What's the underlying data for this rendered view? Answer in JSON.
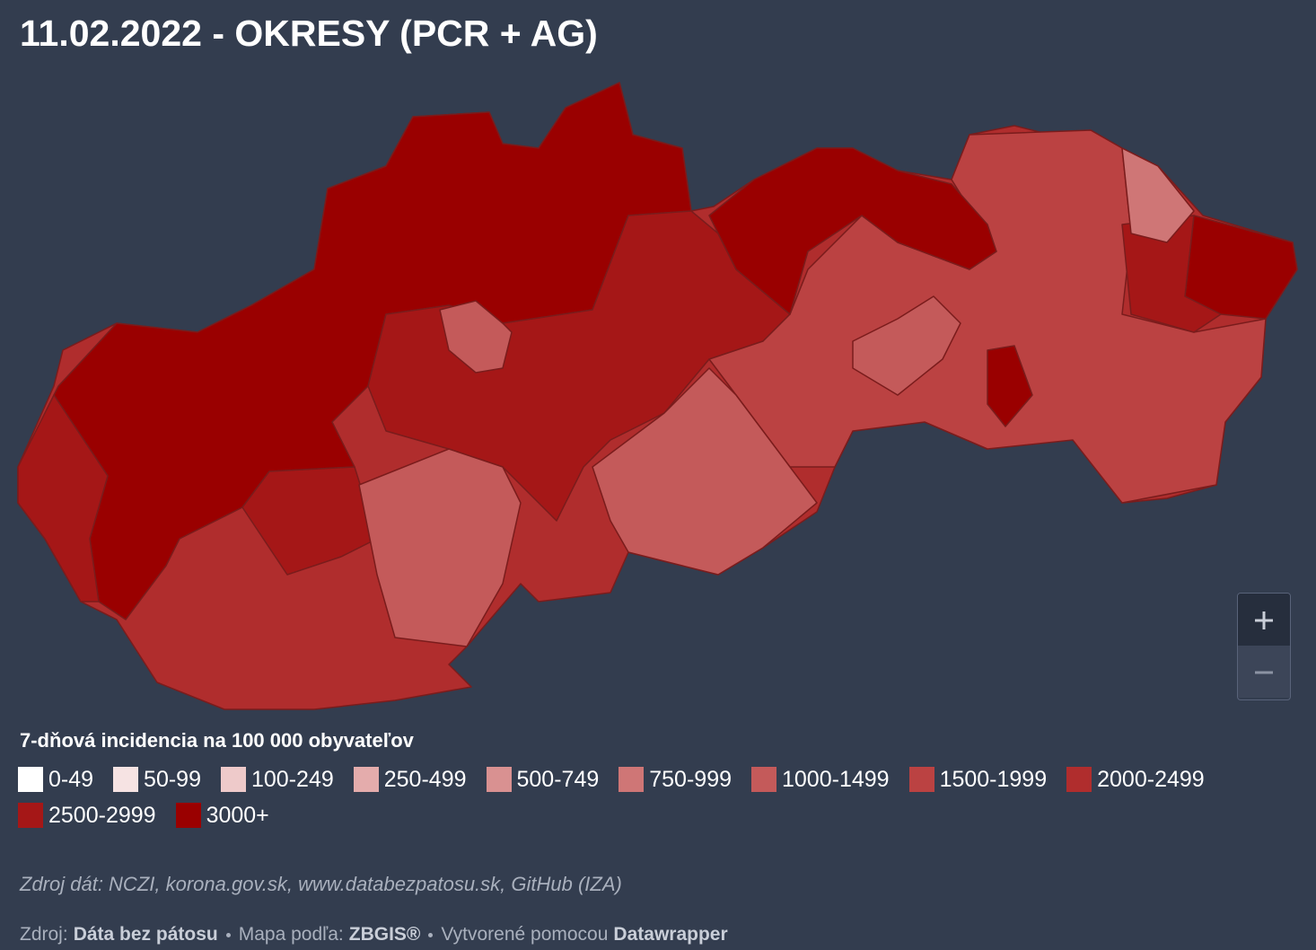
{
  "header": {
    "title": "11.02.2022 - OKRESY (PCR + AG)"
  },
  "legend": {
    "title": "7-dňová incidencia na 100 000 obyvateľov",
    "items": [
      {
        "label": "0-49",
        "color": "#ffffff"
      },
      {
        "label": "50-99",
        "color": "#f6e3e3"
      },
      {
        "label": "100-249",
        "color": "#eecaca"
      },
      {
        "label": "250-499",
        "color": "#e4acac"
      },
      {
        "label": "500-749",
        "color": "#d99191"
      },
      {
        "label": "750-999",
        "color": "#cf7676"
      },
      {
        "label": "1000-1499",
        "color": "#c45a5a"
      },
      {
        "label": "1500-1999",
        "color": "#bb4242"
      },
      {
        "label": "2000-2499",
        "color": "#b02d2d"
      },
      {
        "label": "2500-2999",
        "color": "#a51717"
      },
      {
        "label": "3000+",
        "color": "#9a0000"
      }
    ]
  },
  "footer": {
    "data_source": "Zdroj dát: NCZI, korona.gov.sk, www.databezpatosu.sk, GitHub (IZA)",
    "credits": [
      {
        "label": "Zdroj:",
        "value": "Dáta bez pátosu"
      },
      {
        "label": "Mapa podľa:",
        "value": "ZBGIS®"
      },
      {
        "label": "Vytvorené pomocou",
        "value": "Datawrapper"
      }
    ]
  }
}
